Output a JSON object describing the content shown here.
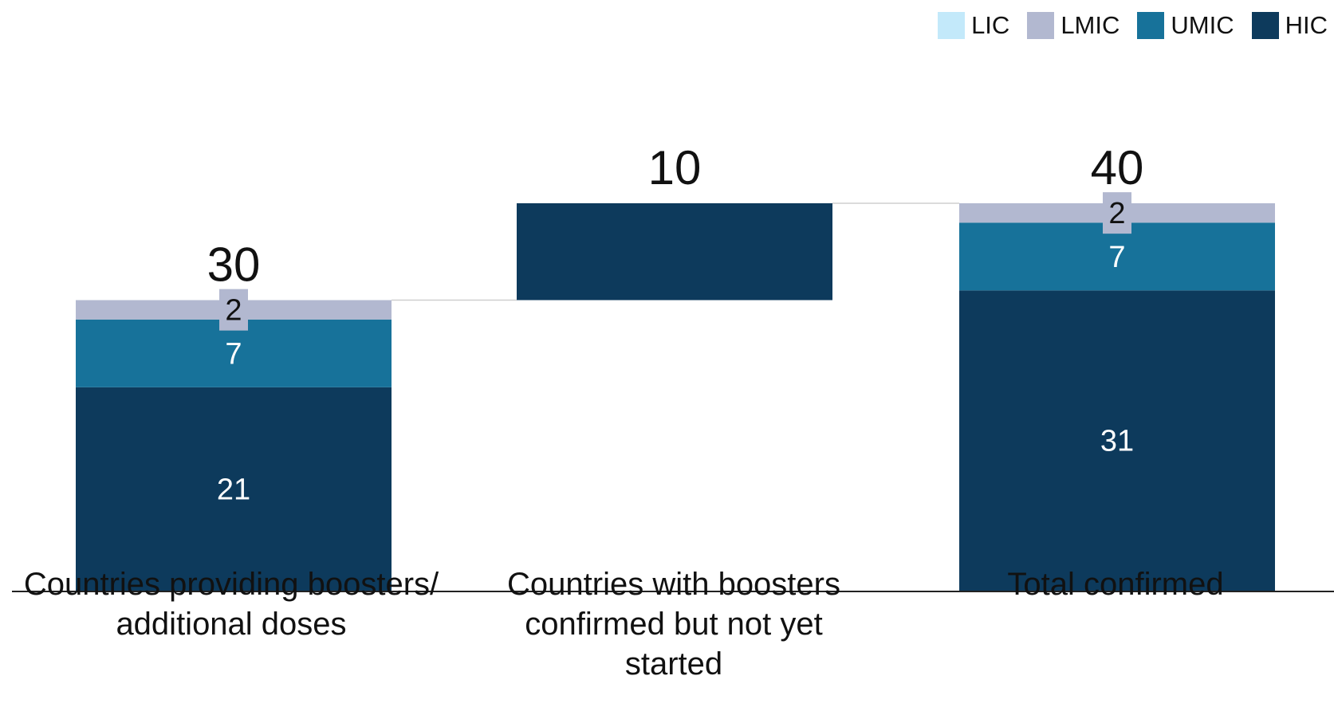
{
  "legend": [
    {
      "name": "LIC",
      "color": "#C3E9FA"
    },
    {
      "name": "LMIC",
      "color": "#B2B8D0"
    },
    {
      "name": "UMIC",
      "color": "#17729A"
    },
    {
      "name": "HIC",
      "color": "#0D3A5C"
    }
  ],
  "chart_data": {
    "type": "bar",
    "subtype": "waterfall-stacked",
    "categories": [
      "Countries providing boosters/\nadditional doses",
      "Countries with boosters\nconfirmed but not yet\nstarted",
      "Total confirmed"
    ],
    "totals": [
      30,
      10,
      40
    ],
    "series": [
      {
        "name": "LIC",
        "color": "#C3E9FA",
        "values": [
          0,
          0,
          0
        ]
      },
      {
        "name": "LMIC",
        "color": "#B2B8D0",
        "values": [
          2,
          0,
          2
        ]
      },
      {
        "name": "UMIC",
        "color": "#17729A",
        "values": [
          7,
          0,
          7
        ]
      },
      {
        "name": "HIC",
        "color": "#0D3A5C",
        "values": [
          21,
          10,
          31
        ]
      }
    ],
    "bases": [
      0,
      30,
      0
    ],
    "data_labels": [
      {
        "LMIC": "2",
        "UMIC": "7",
        "HIC": "21"
      },
      {},
      {
        "LMIC": "2",
        "UMIC": "7",
        "HIC": "31"
      }
    ],
    "ylim": [
      0,
      40
    ],
    "legend_position": "top-right",
    "grid": false
  }
}
